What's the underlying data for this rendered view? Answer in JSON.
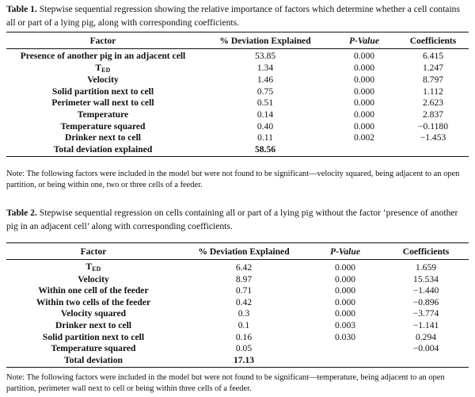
{
  "table1": {
    "caption_label": "Table 1.",
    "caption_text": " Stepwise sequential regression showing the relative importance of factors which determine whether a cell contains all or part of a lying pig, along with corresponding coefficients.",
    "headers": [
      "Factor",
      "% Deviation Explained",
      "P-Value",
      "Coefficients"
    ],
    "rows": [
      {
        "factor": "Presence of another pig in an adjacent cell",
        "deviation": "53.85",
        "pvalue": "0.000",
        "coef": "6.415"
      },
      {
        "factor": "T",
        "factor_sub": "ED",
        "deviation": "1.34",
        "pvalue": "0.000",
        "coef": "1.247"
      },
      {
        "factor": "Velocity",
        "deviation": "1.46",
        "pvalue": "0.000",
        "coef": "8.797"
      },
      {
        "factor": "Solid partition next to cell",
        "deviation": "0.75",
        "pvalue": "0.000",
        "coef": "1.112"
      },
      {
        "factor": "Perimeter wall next to cell",
        "deviation": "0.51",
        "pvalue": "0.000",
        "coef": "2.623"
      },
      {
        "factor": "Temperature",
        "deviation": "0.14",
        "pvalue": "0.000",
        "coef": "2.837"
      },
      {
        "factor": "Temperature squared",
        "deviation": "0.40",
        "pvalue": "0.000",
        "coef": "−0.1180"
      },
      {
        "factor": "Drinker next to cell",
        "deviation": "0.11",
        "pvalue": "0.002",
        "coef": "−1.453"
      }
    ],
    "total": {
      "factor": "Total deviation explained",
      "deviation": "58.56"
    },
    "note": "Note: The following factors were included in the model but were not found to be significant—velocity squared, being adjacent to an open partition, or being within one, two or three cells of a feeder."
  },
  "table2": {
    "caption_label": "Table 2.",
    "caption_text": " Stepwise sequential regression on cells containing all or part of a lying pig without the factor ‘presence of another pig in an adjacent cell’ along with corresponding coefficients.",
    "headers": [
      "Factor",
      "% Deviation Explained",
      "P-Value",
      "Coefficients"
    ],
    "rows": [
      {
        "factor": "T",
        "factor_sub": "ED",
        "deviation": "6.42",
        "pvalue": "0.000",
        "coef": "1.659"
      },
      {
        "factor": "Velocity",
        "deviation": "8.97",
        "pvalue": "0.000",
        "coef": "15.534"
      },
      {
        "factor": "Within one cell of the feeder",
        "deviation": "0.71",
        "pvalue": "0.000",
        "coef": "−1.440"
      },
      {
        "factor": "Within two cells of the feeder",
        "deviation": "0.42",
        "pvalue": "0.000",
        "coef": "−0.896"
      },
      {
        "factor": "Velocity squared",
        "deviation": "0.3",
        "pvalue": "0.000",
        "coef": "−3.774"
      },
      {
        "factor": "Drinker next to cell",
        "deviation": "0.1",
        "pvalue": "0.003",
        "coef": "−1.141"
      },
      {
        "factor": "Solid partition next to cell",
        "deviation": "0.16",
        "pvalue": "0.030",
        "coef": "0.294"
      },
      {
        "factor": "Temperature squared",
        "deviation": "0.05",
        "pvalue": "",
        "coef": "−0.004"
      }
    ],
    "total": {
      "factor": "Total deviation",
      "deviation": "17.13"
    },
    "note": "Note: The following factors were included in the model but were not found to be significant—temperature, being adjacent to an open partition, perimeter wall next to cell or being within three cells of a feeder."
  }
}
